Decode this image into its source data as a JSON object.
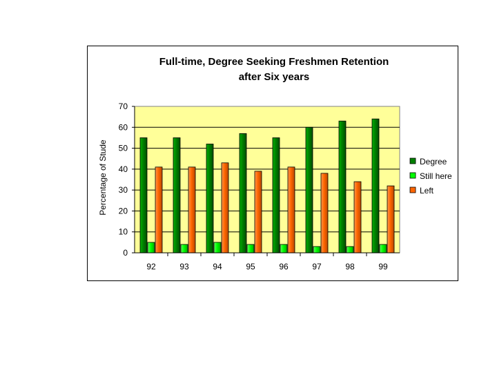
{
  "chart_data": {
    "type": "bar",
    "title_lines": [
      "Full-time, Degree Seeking Freshmen Retention",
      "after Six years"
    ],
    "xlabel": "",
    "ylabel": "Percentage of Stude",
    "categories": [
      "92",
      "93",
      "94",
      "95",
      "96",
      "97",
      "98",
      "99"
    ],
    "ylim": [
      0,
      70
    ],
    "yticks": [
      0,
      10,
      20,
      30,
      40,
      50,
      60,
      70
    ],
    "grid": true,
    "legend_position": "right",
    "plot_background": "#ffff99",
    "series": [
      {
        "name": "Degree",
        "color": "#008000",
        "values": [
          55,
          55,
          52,
          57,
          55,
          60,
          63,
          64
        ]
      },
      {
        "name": "Still here",
        "color": "#00ff00",
        "values": [
          5,
          4,
          5,
          4,
          4,
          3,
          3,
          4
        ]
      },
      {
        "name": "Left",
        "color": "#ff6600",
        "values": [
          41,
          41,
          43,
          39,
          41,
          38,
          34,
          32
        ]
      }
    ]
  }
}
